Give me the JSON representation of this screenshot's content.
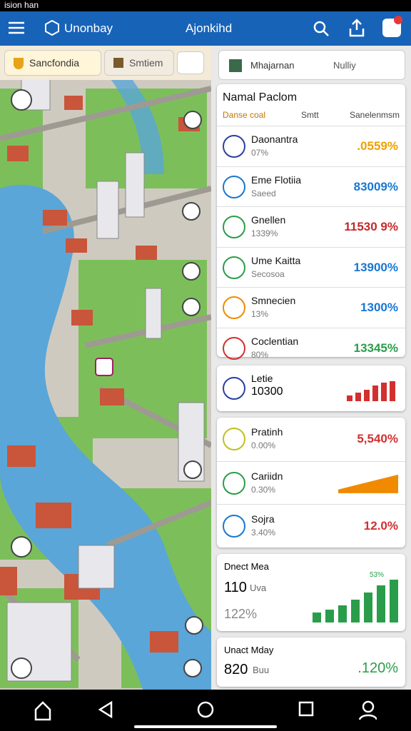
{
  "status_bar": {
    "text": "ision han"
  },
  "app_bar": {
    "left_title": "Unonbay",
    "center_title": "Ajonkihd"
  },
  "map_tabs": [
    "Sancfondia",
    "Smtiem"
  ],
  "panel_tabs": [
    "Mhajarnan",
    "Nulliy"
  ],
  "card1": {
    "title": "Namal Paclom",
    "headers": [
      "Danse coal",
      "Smtt",
      "Sanelenmsm"
    ],
    "rows": [
      {
        "name": "Daonantra",
        "sub": "07%",
        "pct": ".0559%",
        "color": "#f0a000",
        "icon": "#2a3fa0"
      },
      {
        "name": "Eme Flotiia",
        "sub": "Saeed",
        "pct": "83009%",
        "color": "#1976d2",
        "icon": "#1976d2"
      },
      {
        "name": "Gnellen",
        "sub": "1339%",
        "pct": "11530 9%",
        "color": "#c62828",
        "icon": "#2a9d4a"
      },
      {
        "name": "Ume Kaitta",
        "sub": "Secosoa",
        "pct": "13900%",
        "color": "#1976d2",
        "icon": "#2a9d4a"
      },
      {
        "name": "Smnecien",
        "sub": "13%",
        "pct": "1300%",
        "color": "#1976d2",
        "icon": "#f08a00"
      },
      {
        "name": "Coclentian",
        "sub": "80%",
        "pct": "13345%",
        "color": "#2a9d4a",
        "icon": "#d32f2f"
      }
    ]
  },
  "card2": {
    "label": "Letie",
    "value": "10300"
  },
  "card3": {
    "rows": [
      {
        "name": "Pratinh",
        "sub": "0.00%",
        "pct": "5,540%",
        "color": "#d32f2f",
        "icon": "#c0c020"
      },
      {
        "name": "Cariidn",
        "sub": "0.30%",
        "pct": "",
        "color": "#f08a00",
        "icon": "#2a9d4a"
      },
      {
        "name": "Sojra",
        "sub": "3.40%",
        "pct": "12.0%",
        "color": "#d32f2f",
        "icon": "#1976d2"
      }
    ]
  },
  "card4": {
    "label": "Dnect Mea",
    "value": "110",
    "unit": "Uva",
    "change": "122%",
    "chart_label": "53%"
  },
  "card5": {
    "label": "Unact Mday",
    "value": "820",
    "unit": "Buu",
    "change": ".120%"
  }
}
